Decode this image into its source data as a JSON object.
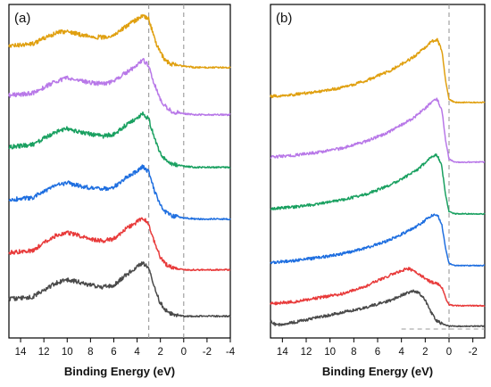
{
  "chart_data": [
    {
      "type": "line",
      "panel_label": "(a)",
      "xlabel": "Binding Energy (eV)",
      "ylabel": "",
      "xlim": [
        15,
        -4
      ],
      "x_ticks": [
        "14",
        "12",
        "10",
        "8",
        "6",
        "4",
        "2",
        "0",
        "-2",
        "-4"
      ],
      "y_ticks": [],
      "grid": false,
      "reference_lines": [
        {
          "x": 3.0,
          "style": "dashed"
        },
        {
          "x": 0.0,
          "style": "dashed"
        }
      ],
      "series": [
        {
          "color": "#e0a010",
          "x": [
            15,
            13,
            11,
            10,
            9,
            8,
            7,
            6,
            5,
            4,
            3.5,
            3,
            2.5,
            2,
            1.5,
            1,
            0,
            -1,
            -2,
            -3,
            -4
          ],
          "y": [
            0.22,
            0.24,
            0.34,
            0.36,
            0.33,
            0.31,
            0.3,
            0.32,
            0.4,
            0.47,
            0.51,
            0.47,
            0.29,
            0.15,
            0.08,
            0.05,
            0.03,
            0.02,
            0.02,
            0.02,
            0.02
          ]
        },
        {
          "color": "#b878e8",
          "x": [
            15,
            13,
            11,
            10,
            9,
            8,
            7,
            6,
            5,
            4,
            3.5,
            3,
            2.5,
            2,
            1.5,
            1,
            0,
            -1,
            -2,
            -3,
            -4
          ],
          "y": [
            0.2,
            0.22,
            0.33,
            0.36,
            0.34,
            0.32,
            0.31,
            0.33,
            0.41,
            0.48,
            0.53,
            0.48,
            0.3,
            0.16,
            0.09,
            0.05,
            0.03,
            0.02,
            0.02,
            0.02,
            0.02
          ]
        },
        {
          "color": "#19a060",
          "x": [
            15,
            13,
            11,
            10,
            9,
            8,
            7,
            6,
            5,
            4,
            3.5,
            3,
            2.5,
            2,
            1.5,
            1,
            0,
            -1,
            -2,
            -3,
            -4
          ],
          "y": [
            0.21,
            0.23,
            0.35,
            0.38,
            0.35,
            0.33,
            0.31,
            0.33,
            0.41,
            0.48,
            0.52,
            0.47,
            0.29,
            0.15,
            0.08,
            0.05,
            0.03,
            0.02,
            0.02,
            0.02,
            0.02
          ]
        },
        {
          "color": "#1f6fe0",
          "x": [
            15,
            13,
            11,
            10,
            9,
            8,
            7,
            6,
            5,
            4,
            3.5,
            3,
            2.5,
            2,
            1.5,
            1,
            0,
            -1,
            -2,
            -3,
            -4
          ],
          "y": [
            0.2,
            0.22,
            0.33,
            0.36,
            0.33,
            0.31,
            0.3,
            0.32,
            0.4,
            0.47,
            0.51,
            0.46,
            0.28,
            0.15,
            0.08,
            0.05,
            0.03,
            0.02,
            0.02,
            0.02,
            0.02
          ]
        },
        {
          "color": "#e83a3a",
          "x": [
            15,
            13,
            11,
            10,
            9,
            8,
            7,
            6,
            5,
            4,
            3.5,
            3,
            2.5,
            2,
            1.5,
            1,
            0,
            -1,
            -2,
            -3,
            -4
          ],
          "y": [
            0.18,
            0.2,
            0.34,
            0.37,
            0.34,
            0.31,
            0.29,
            0.31,
            0.4,
            0.47,
            0.5,
            0.45,
            0.27,
            0.14,
            0.07,
            0.04,
            0.02,
            0.02,
            0.02,
            0.02,
            0.02
          ]
        },
        {
          "color": "#4a4a4a",
          "x": [
            15,
            13,
            11,
            10,
            9,
            8,
            7,
            6,
            5,
            4,
            3.5,
            3,
            2.5,
            2,
            1.5,
            1,
            0,
            -1,
            -2,
            -3,
            -4
          ],
          "y": [
            0.18,
            0.2,
            0.33,
            0.36,
            0.34,
            0.31,
            0.29,
            0.31,
            0.4,
            0.48,
            0.52,
            0.47,
            0.28,
            0.14,
            0.07,
            0.04,
            0.02,
            0.02,
            0.02,
            0.02,
            0.02
          ]
        }
      ]
    },
    {
      "type": "line",
      "panel_label": "(b)",
      "xlabel": "Binding Energy (eV)",
      "ylabel": "",
      "xlim": [
        15,
        -3
      ],
      "x_ticks": [
        "14",
        "12",
        "10",
        "8",
        "6",
        "4",
        "2",
        "0",
        "-2"
      ],
      "y_ticks": [],
      "grid": false,
      "reference_lines": [
        {
          "x": 0.0,
          "style": "dashed"
        },
        {
          "y": "baseline",
          "from_x": 4,
          "to_x": -3,
          "style": "dashed"
        }
      ],
      "series": [
        {
          "color": "#e0a010",
          "x": [
            15,
            13,
            11,
            9,
            7,
            5,
            3,
            2,
            1.5,
            1,
            0.6,
            0.3,
            0,
            -0.5,
            -1,
            -2,
            -3
          ],
          "y": [
            0.08,
            0.1,
            0.13,
            0.17,
            0.24,
            0.34,
            0.48,
            0.58,
            0.64,
            0.66,
            0.55,
            0.25,
            0.05,
            0.02,
            0.02,
            0.02,
            0.02
          ]
        },
        {
          "color": "#b878e8",
          "x": [
            15,
            13,
            11,
            9,
            7,
            5,
            3,
            2,
            1.5,
            1,
            0.6,
            0.3,
            0,
            -0.5,
            -1,
            -2,
            -3
          ],
          "y": [
            0.07,
            0.09,
            0.12,
            0.16,
            0.23,
            0.33,
            0.47,
            0.57,
            0.63,
            0.66,
            0.55,
            0.25,
            0.05,
            0.02,
            0.02,
            0.02,
            0.02
          ]
        },
        {
          "color": "#19a060",
          "x": [
            15,
            13,
            11,
            9,
            7,
            5,
            3,
            2,
            1.5,
            1,
            0.6,
            0.3,
            0,
            -0.5,
            -1,
            -2,
            -3
          ],
          "y": [
            0.07,
            0.09,
            0.12,
            0.16,
            0.22,
            0.31,
            0.44,
            0.54,
            0.6,
            0.62,
            0.5,
            0.22,
            0.04,
            0.02,
            0.02,
            0.02,
            0.02
          ]
        },
        {
          "color": "#1f6fe0",
          "x": [
            15,
            13,
            11,
            9,
            7,
            5,
            3,
            2,
            1.5,
            1,
            0.6,
            0.3,
            0,
            -0.5,
            -1,
            -2,
            -3
          ],
          "y": [
            0.05,
            0.07,
            0.1,
            0.14,
            0.2,
            0.28,
            0.4,
            0.48,
            0.53,
            0.54,
            0.44,
            0.2,
            0.04,
            0.02,
            0.02,
            0.02,
            0.02
          ]
        },
        {
          "color": "#e83a3a",
          "x": [
            15,
            13,
            11,
            9,
            7,
            5,
            3.5,
            3,
            2,
            1.5,
            1,
            0.5,
            0.2,
            0,
            -0.5,
            -1,
            -3
          ],
          "y": [
            0.04,
            0.06,
            0.1,
            0.14,
            0.22,
            0.33,
            0.4,
            0.38,
            0.3,
            0.26,
            0.25,
            0.18,
            0.07,
            0.03,
            0.02,
            0.02,
            0.02
          ]
        },
        {
          "color": "#4a4a4a",
          "x": [
            15,
            14.5,
            13,
            11,
            9,
            7,
            5,
            3.5,
            3,
            2.5,
            2,
            1.5,
            1,
            0.5,
            0,
            -1,
            -2,
            -3
          ],
          "y": [
            0.07,
            0.03,
            0.06,
            0.11,
            0.16,
            0.21,
            0.28,
            0.36,
            0.38,
            0.36,
            0.28,
            0.16,
            0.07,
            0.04,
            0.02,
            0.02,
            0.02,
            0.02
          ]
        }
      ]
    }
  ]
}
